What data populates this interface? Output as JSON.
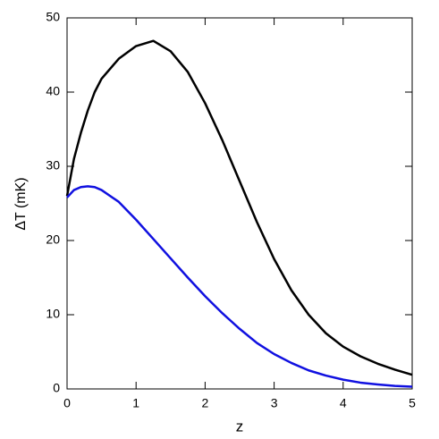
{
  "chart_data": {
    "type": "line",
    "xlabel": "z",
    "ylabel": "ΔT (mK)",
    "x": [
      0,
      0.1,
      0.2,
      0.3,
      0.4,
      0.5,
      0.75,
      1,
      1.25,
      1.5,
      1.75,
      2,
      2.25,
      2.5,
      2.75,
      3,
      3.25,
      3.5,
      3.75,
      4,
      4.25,
      4.5,
      4.75,
      5
    ],
    "series": [
      {
        "color": "#000000",
        "values": [
          26,
          31,
          34.5,
          37.5,
          40,
          41.8,
          44.5,
          46.2,
          46.9,
          45.5,
          42.7,
          38.5,
          33.5,
          28,
          22.5,
          17.5,
          13.3,
          10,
          7.5,
          5.7,
          4.4,
          3.4,
          2.6,
          1.9
        ]
      },
      {
        "color": "#1010e0",
        "values": [
          25.8,
          26.8,
          27.2,
          27.3,
          27.2,
          26.8,
          25.2,
          22.8,
          20.2,
          17.6,
          15,
          12.5,
          10.2,
          8.1,
          6.2,
          4.7,
          3.5,
          2.5,
          1.8,
          1.25,
          0.85,
          0.6,
          0.4,
          0.3
        ]
      }
    ],
    "xlim": [
      0,
      5
    ],
    "xticks": [
      0,
      1,
      2,
      3,
      4,
      5
    ],
    "ylim": [
      0,
      50
    ],
    "yticks": [
      0,
      10,
      20,
      30,
      40,
      50
    ]
  }
}
